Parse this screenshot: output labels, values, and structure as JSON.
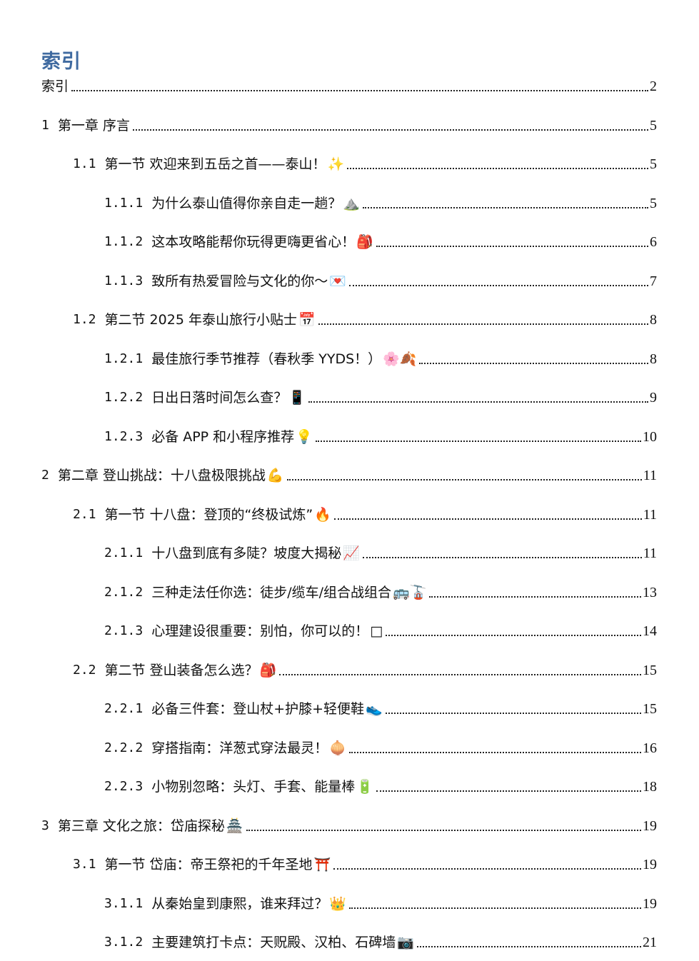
{
  "title": "索引",
  "entries": [
    {
      "level": 1,
      "number": "",
      "text": "索引",
      "emoji": "",
      "page": "2"
    },
    {
      "level": 1,
      "number": "1",
      "text": "第一章 序言",
      "emoji": "",
      "page": "5"
    },
    {
      "level": 2,
      "number": "1.1",
      "text": "第一节 欢迎来到五岳之首——泰山！",
      "emoji": "✨",
      "page": "5"
    },
    {
      "level": 3,
      "number": "1.1.1",
      "text": "为什么泰山值得你亲自走一趟？",
      "emoji": "⛰️",
      "page": "5"
    },
    {
      "level": 3,
      "number": "1.1.2",
      "text": "这本攻略能帮你玩得更嗨更省心！",
      "emoji": "🎒",
      "page": "6"
    },
    {
      "level": 3,
      "number": "1.1.3",
      "text": "致所有热爱冒险与文化的你～",
      "emoji": "💌",
      "page": "7"
    },
    {
      "level": 2,
      "number": "1.2",
      "text": "第二节 2025 年泰山旅行小贴士",
      "emoji": "📅",
      "page": "8"
    },
    {
      "level": 3,
      "number": "1.2.1",
      "text": "最佳旅行季节推荐（春秋季 YYDS！）",
      "emoji": "🌸🍂",
      "page": "8"
    },
    {
      "level": 3,
      "number": "1.2.2",
      "text": "日出日落时间怎么查？",
      "emoji": "📱",
      "page": "9"
    },
    {
      "level": 3,
      "number": "1.2.3",
      "text": "必备 APP 和小程序推荐",
      "emoji": "💡",
      "page": "10"
    },
    {
      "level": 1,
      "number": "2",
      "text": "第二章 登山挑战：十八盘极限挑战",
      "emoji": "💪",
      "page": "11"
    },
    {
      "level": 2,
      "number": "2.1",
      "text": "第一节 十八盘：登顶的“终极试炼”",
      "emoji": "🔥",
      "page": "11"
    },
    {
      "level": 3,
      "number": "2.1.1",
      "text": "十八盘到底有多陡？坡度大揭秘",
      "emoji": "📈",
      "page": "11"
    },
    {
      "level": 3,
      "number": "2.1.2",
      "text": "三种走法任你选：徒步/缆车/组合战组合",
      "emoji": "🚌🚡",
      "page": "13"
    },
    {
      "level": 3,
      "number": "2.1.3",
      "text": "心理建设很重要：别怕，你可以的！",
      "emoji": "□",
      "page": "14"
    },
    {
      "level": 2,
      "number": "2.2",
      "text": "第二节 登山装备怎么选？",
      "emoji": "🎒",
      "page": "15"
    },
    {
      "level": 3,
      "number": "2.2.1",
      "text": "必备三件套：登山杖+护膝+轻便鞋",
      "emoji": "👟",
      "page": "15"
    },
    {
      "level": 3,
      "number": "2.2.2",
      "text": "穿搭指南：洋葱式穿法最灵！",
      "emoji": "🧅",
      "page": "16"
    },
    {
      "level": 3,
      "number": "2.2.3",
      "text": "小物别忽略：头灯、手套、能量棒",
      "emoji": "🔋",
      "page": "18"
    },
    {
      "level": 1,
      "number": "3",
      "text": "第三章 文化之旅：岱庙探秘",
      "emoji": "🏯",
      "page": "19"
    },
    {
      "level": 2,
      "number": "3.1",
      "text": "第一节 岱庙：帝王祭祀的千年圣地",
      "emoji": "⛩️",
      "page": "19"
    },
    {
      "level": 3,
      "number": "3.1.1",
      "text": "从秦始皇到康熙，谁来拜过？",
      "emoji": "👑",
      "page": "19"
    },
    {
      "level": 3,
      "number": "3.1.2",
      "text": "主要建筑打卡点：天贶殿、汉柏、石碑墙",
      "emoji": "📷",
      "page": "21"
    }
  ]
}
